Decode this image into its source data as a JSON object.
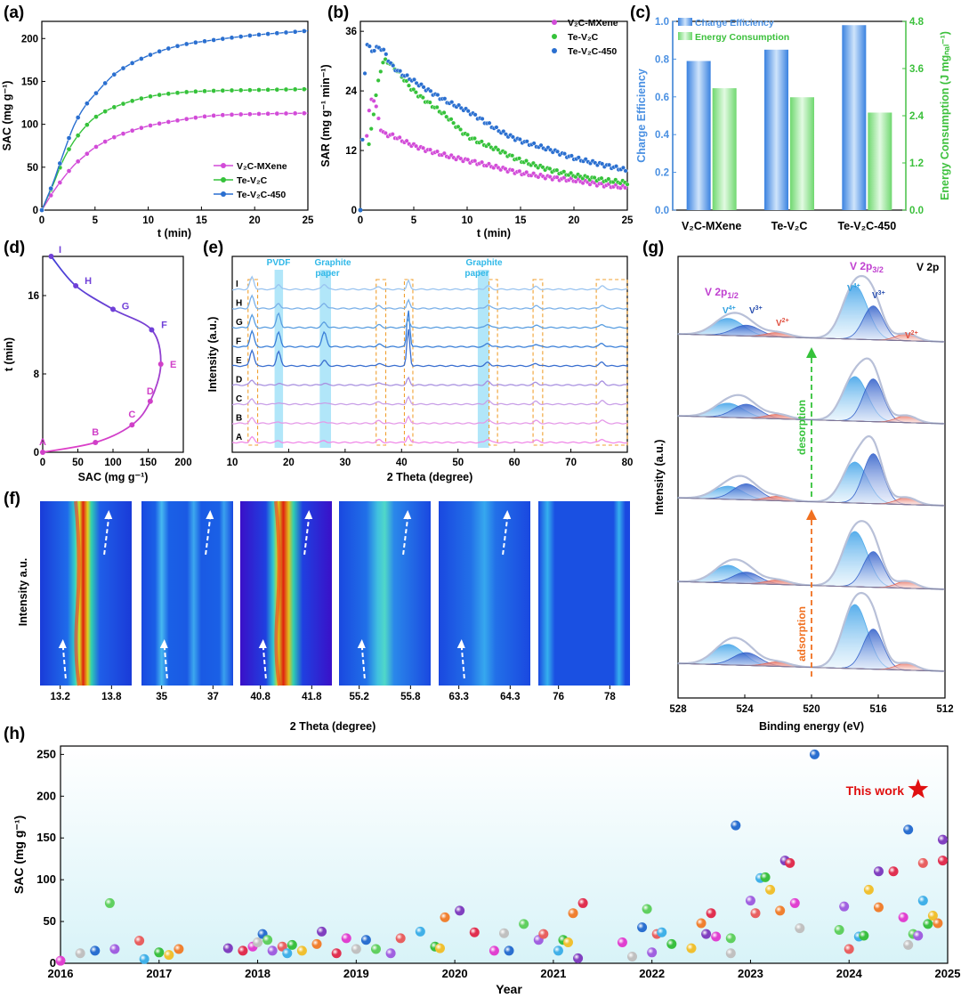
{
  "colors": {
    "v2c": "#d24bd8",
    "tev2c": "#35c23a",
    "tev2c450": "#2a6fd0",
    "blue": "#4a90e2",
    "green": "#5fd05f",
    "orange": "#f0a030",
    "purple": "#b040d0"
  },
  "panels": {
    "a": "(a)",
    "b": "(b)",
    "c": "(c)",
    "d": "(d)",
    "e": "(e)",
    "f": "(f)",
    "g": "(g)",
    "h": "(h)"
  },
  "chart_data": [
    {
      "id": "a",
      "type": "line",
      "xlabel": "t (min)",
      "ylabel": "SAC (mg g⁻¹)",
      "xlim": [
        0,
        25
      ],
      "ylim": [
        0,
        220
      ],
      "xticks": [
        0,
        5,
        10,
        15,
        20,
        25
      ],
      "yticks": [
        0,
        50,
        100,
        150,
        200
      ],
      "series": [
        {
          "name": "V₂C-MXene",
          "color": "#d24bd8",
          "values": [
            [
              0,
              0
            ],
            [
              1,
              20
            ],
            [
              2,
              37
            ],
            [
              3,
              52
            ],
            [
              4,
              63
            ],
            [
              5,
              73
            ],
            [
              7,
              86
            ],
            [
              10,
              98
            ],
            [
              13,
              105
            ],
            [
              16,
              110
            ],
            [
              20,
              112
            ],
            [
              25,
              113
            ]
          ]
        },
        {
          "name": "Te-V₂C",
          "color": "#35c23a",
          "values": [
            [
              0,
              0
            ],
            [
              1,
              28
            ],
            [
              2,
              58
            ],
            [
              3,
              80
            ],
            [
              4,
              96
            ],
            [
              5,
              108
            ],
            [
              7,
              121
            ],
            [
              10,
              132
            ],
            [
              13,
              137
            ],
            [
              16,
              139
            ],
            [
              20,
              140
            ],
            [
              25,
              141
            ]
          ]
        },
        {
          "name": "Te-V₂C-450",
          "color": "#2a6fd0",
          "values": [
            [
              0,
              0
            ],
            [
              1,
              30
            ],
            [
              2,
              65
            ],
            [
              3,
              98
            ],
            [
              4,
              120
            ],
            [
              5,
              135
            ],
            [
              7,
              160
            ],
            [
              10,
              180
            ],
            [
              13,
              192
            ],
            [
              16,
              198
            ],
            [
              20,
              204
            ],
            [
              25,
              209
            ]
          ]
        }
      ]
    },
    {
      "id": "b",
      "type": "scatter",
      "xlabel": "t (min)",
      "ylabel": "SAR (mg g⁻¹ min⁻¹)",
      "xlim": [
        0,
        25
      ],
      "ylim": [
        0,
        38
      ],
      "xticks": [
        0,
        5,
        10,
        15,
        20,
        25
      ],
      "yticks": [
        0,
        12,
        24,
        36
      ],
      "series": [
        {
          "name": "V₂C-MXene",
          "color": "#d24bd8",
          "values": [
            [
              0,
              0
            ],
            [
              1,
              22
            ],
            [
              2,
              16
            ],
            [
              3,
              15
            ],
            [
              5,
              13
            ],
            [
              8,
              11
            ],
            [
              10,
              10
            ],
            [
              13,
              8.5
            ],
            [
              15,
              7.5
            ],
            [
              18,
              6.5
            ],
            [
              20,
              6
            ],
            [
              23,
              5
            ],
            [
              25,
              4.5
            ]
          ]
        },
        {
          "name": "Te-V₂C",
          "color": "#35c23a",
          "values": [
            [
              0,
              0
            ],
            [
              1,
              16
            ],
            [
              2,
              29
            ],
            [
              3,
              29
            ],
            [
              5,
              24
            ],
            [
              8,
              19
            ],
            [
              10,
              15
            ],
            [
              13,
              12
            ],
            [
              15,
              10
            ],
            [
              18,
              8
            ],
            [
              20,
              7
            ],
            [
              23,
              6
            ],
            [
              25,
              5.5
            ]
          ]
        },
        {
          "name": "Te-V₂C-450",
          "color": "#2a6fd0",
          "values": [
            [
              0,
              0
            ],
            [
              0.5,
              31
            ],
            [
              1,
              32
            ],
            [
              2,
              32.5
            ],
            [
              3,
              29
            ],
            [
              5,
              26
            ],
            [
              8,
              22
            ],
            [
              10,
              20
            ],
            [
              13,
              16
            ],
            [
              15,
              14
            ],
            [
              18,
              12
            ],
            [
              20,
              10.5
            ],
            [
              23,
              9
            ],
            [
              25,
              8
            ]
          ]
        }
      ]
    },
    {
      "id": "c",
      "type": "bar",
      "categories": [
        "V₂C-MXene",
        "Te-V₂C",
        "Te-V₂C-450"
      ],
      "ylim": [
        0,
        1.0
      ],
      "y2lim": [
        0,
        4.8
      ],
      "yticks": [
        0.0,
        0.2,
        0.4,
        0.6,
        0.8,
        1.0
      ],
      "y2ticks": [
        "0.0",
        "1.2",
        "2.4",
        "3.6",
        "4.8"
      ],
      "ylabel": "Charge Efficiency",
      "y2label": "Energy Consumption (J mgₙₐₗ⁻¹)",
      "series": [
        {
          "name": "Charge Efficiency",
          "values": [
            0.79,
            0.85,
            0.98
          ]
        },
        {
          "name": "Energy Consumption",
          "values": [
            3.1,
            2.87,
            2.48
          ]
        }
      ]
    },
    {
      "id": "d",
      "type": "line",
      "xlabel": "SAC (mg g⁻¹)",
      "ylabel": "t (min)",
      "xlim": [
        0,
        200
      ],
      "ylim": [
        0,
        20
      ],
      "xticks": [
        0,
        50,
        100,
        150,
        200
      ],
      "yticks": [
        0,
        8,
        16
      ],
      "points": [
        {
          "label": "A",
          "x": 0,
          "y": 0
        },
        {
          "label": "B",
          "x": 75,
          "y": 1
        },
        {
          "label": "C",
          "x": 127,
          "y": 2.8
        },
        {
          "label": "D",
          "x": 153,
          "y": 5.2
        },
        {
          "label": "E",
          "x": 168,
          "y": 9
        },
        {
          "label": "F",
          "x": 155,
          "y": 12.5
        },
        {
          "label": "G",
          "x": 100,
          "y": 14.6
        },
        {
          "label": "H",
          "x": 47,
          "y": 17
        },
        {
          "label": "I",
          "x": 12,
          "y": 20
        }
      ]
    },
    {
      "id": "e",
      "type": "line",
      "xlabel": "2 Theta (degree)",
      "ylabel": "Intensity (a.u.)",
      "xlim": [
        10,
        80
      ],
      "xticks": [
        10,
        20,
        30,
        40,
        50,
        60,
        70,
        80
      ],
      "curves": [
        "A",
        "B",
        "C",
        "D",
        "E",
        "F",
        "G",
        "H",
        "I"
      ],
      "annotations": [
        "PVDF",
        "Graphite paper",
        "Graphite paper"
      ]
    },
    {
      "id": "f",
      "type": "heatmap",
      "xlabel": "2 Theta (degree)",
      "ylabel": "Intensity a.u.",
      "panel_ticks": [
        [
          "13.2",
          "13.8"
        ],
        [
          "35",
          "37"
        ],
        [
          "40.8",
          "41.8"
        ],
        [
          "55.2",
          "55.8"
        ],
        [
          "63.3",
          "64.3"
        ],
        [
          "76",
          "78"
        ]
      ]
    },
    {
      "id": "g",
      "type": "line",
      "xlabel": "Binding energy (eV)",
      "ylabel": "Intensity (a.u.)",
      "xlim": [
        528,
        512
      ],
      "xticks": [
        528,
        524,
        520,
        516,
        512
      ],
      "labels": {
        "title": "V 2p",
        "p12": "V 2p1/2",
        "p32": "V 2p3/2",
        "v4": "V4+",
        "v3": "V3+",
        "v2": "V2+",
        "desorption": "desorption",
        "adsorption": "adsorption"
      }
    },
    {
      "id": "h",
      "type": "scatter",
      "xlabel": "Year",
      "ylabel": "SAC (mg g⁻¹)",
      "xlim": [
        2016,
        2025
      ],
      "ylim": [
        0,
        260
      ],
      "xticks": [
        "2016",
        "2017",
        "2018",
        "2019",
        "2020",
        "2021",
        "2022",
        "2023",
        "2024",
        "2025"
      ],
      "yticks": [
        0,
        50,
        100,
        150,
        200,
        250
      ],
      "annotation": "This work",
      "this_work": {
        "x": 2024.7,
        "y": 208
      },
      "values": [
        [
          2016.0,
          3
        ],
        [
          2016.2,
          12
        ],
        [
          2016.35,
          15
        ],
        [
          2016.5,
          72
        ],
        [
          2016.55,
          17
        ],
        [
          2016.8,
          27
        ],
        [
          2016.85,
          5
        ],
        [
          2017.0,
          13
        ],
        [
          2017.1,
          10
        ],
        [
          2017.2,
          17
        ],
        [
          2017.7,
          18
        ],
        [
          2017.85,
          15
        ],
        [
          2017.95,
          20
        ],
        [
          2018.0,
          25
        ],
        [
          2018.05,
          35
        ],
        [
          2018.1,
          28
        ],
        [
          2018.15,
          15
        ],
        [
          2018.25,
          20
        ],
        [
          2018.3,
          12
        ],
        [
          2018.35,
          22
        ],
        [
          2018.45,
          15
        ],
        [
          2018.6,
          23
        ],
        [
          2018.65,
          38
        ],
        [
          2018.8,
          12
        ],
        [
          2018.9,
          30
        ],
        [
          2019.0,
          17
        ],
        [
          2019.1,
          28
        ],
        [
          2019.2,
          17
        ],
        [
          2019.35,
          12
        ],
        [
          2019.45,
          30
        ],
        [
          2019.65,
          38
        ],
        [
          2019.8,
          20
        ],
        [
          2019.85,
          18
        ],
        [
          2019.9,
          55
        ],
        [
          2020.05,
          63
        ],
        [
          2020.2,
          37
        ],
        [
          2020.4,
          15
        ],
        [
          2020.5,
          36
        ],
        [
          2020.55,
          15
        ],
        [
          2020.7,
          47
        ],
        [
          2020.85,
          28
        ],
        [
          2020.9,
          35
        ],
        [
          2021.05,
          15
        ],
        [
          2021.1,
          28
        ],
        [
          2021.15,
          25
        ],
        [
          2021.2,
          60
        ],
        [
          2021.25,
          6
        ],
        [
          2021.3,
          72
        ],
        [
          2021.7,
          25
        ],
        [
          2021.8,
          8
        ],
        [
          2021.9,
          43
        ],
        [
          2021.95,
          65
        ],
        [
          2022.0,
          13
        ],
        [
          2022.05,
          35
        ],
        [
          2022.1,
          37
        ],
        [
          2022.2,
          23
        ],
        [
          2022.4,
          18
        ],
        [
          2022.5,
          48
        ],
        [
          2022.55,
          35
        ],
        [
          2022.6,
          60
        ],
        [
          2022.65,
          32
        ],
        [
          2022.8,
          12
        ],
        [
          2022.85,
          165
        ],
        [
          2022.8,
          30
        ],
        [
          2023.0,
          75
        ],
        [
          2023.05,
          60
        ],
        [
          2023.1,
          102
        ],
        [
          2023.15,
          103
        ],
        [
          2023.2,
          88
        ],
        [
          2023.3,
          63
        ],
        [
          2023.35,
          123
        ],
        [
          2023.4,
          120
        ],
        [
          2023.45,
          72
        ],
        [
          2023.5,
          42
        ],
        [
          2023.65,
          250
        ],
        [
          2023.9,
          40
        ],
        [
          2023.95,
          68
        ],
        [
          2024.0,
          17
        ],
        [
          2024.1,
          32
        ],
        [
          2024.15,
          33
        ],
        [
          2024.2,
          88
        ],
        [
          2024.3,
          67
        ],
        [
          2024.3,
          110
        ],
        [
          2024.45,
          110
        ],
        [
          2024.55,
          55
        ],
        [
          2024.6,
          22
        ],
        [
          2024.6,
          160
        ],
        [
          2024.65,
          35
        ],
        [
          2024.7,
          33
        ],
        [
          2024.75,
          120
        ],
        [
          2024.75,
          75
        ],
        [
          2024.8,
          47
        ],
        [
          2024.85,
          57
        ],
        [
          2024.9,
          48
        ],
        [
          2024.95,
          148
        ],
        [
          2024.95,
          123
        ]
      ]
    }
  ]
}
